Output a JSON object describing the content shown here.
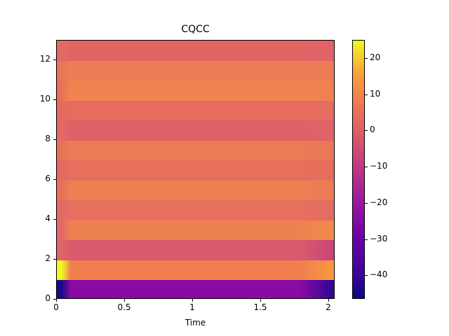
{
  "chart_data": {
    "type": "heatmap",
    "title": "CQCC",
    "xlabel": "Time",
    "ylabel": "",
    "xlim": [
      0,
      2.05
    ],
    "ylim": [
      0,
      13
    ],
    "xticks": [
      "0",
      "0.5",
      "1",
      "1.5",
      "2"
    ],
    "yticks": [
      "0",
      "2",
      "4",
      "6",
      "8",
      "10",
      "12"
    ],
    "colormap": "plasma",
    "colorbar": {
      "range": [
        -46.5,
        25
      ],
      "ticks": [
        "20",
        "10",
        "0",
        "−10",
        "−20",
        "−30",
        "−40"
      ]
    },
    "rows": [
      {
        "coef": 0,
        "start_color": "#1a0a8a",
        "color": "#8a0aa4",
        "end_color": "#2c0596",
        "approx_value": -35
      },
      {
        "coef": 1,
        "start_color": "#f0f921",
        "color": "#f07f4f",
        "end_color": "#fa9a3d",
        "approx_value": 5
      },
      {
        "coef": 2,
        "start_color": "#e0646a",
        "color": "#d85a6c",
        "end_color": "#c8447a",
        "approx_value": -5
      },
      {
        "coef": 3,
        "start_color": "#e4686a",
        "color": "#ee8150",
        "end_color": "#f08a4c",
        "approx_value": 5
      },
      {
        "coef": 4,
        "start_color": "#e46a63",
        "color": "#e76f5f",
        "end_color": "#e46a63",
        "approx_value": 0
      },
      {
        "coef": 5,
        "start_color": "#e87058",
        "color": "#ee7f52",
        "end_color": "#ec7a55",
        "approx_value": 3
      },
      {
        "coef": 6,
        "start_color": "#e4685e",
        "color": "#e86f5c",
        "end_color": "#e66c5d",
        "approx_value": 0
      },
      {
        "coef": 7,
        "start_color": "#e87258",
        "color": "#ec7a56",
        "end_color": "#ea7657",
        "approx_value": 2
      },
      {
        "coef": 8,
        "start_color": "#e4686a",
        "color": "#df6168",
        "end_color": "#e0636a",
        "approx_value": -3
      },
      {
        "coef": 9,
        "start_color": "#e46a63",
        "color": "#e66c5f",
        "end_color": "#e66c60",
        "approx_value": 0
      },
      {
        "coef": 10,
        "start_color": "#e87058",
        "color": "#f08450",
        "end_color": "#ef8151",
        "approx_value": 6
      },
      {
        "coef": 11,
        "start_color": "#ea7658",
        "color": "#ed7b55",
        "end_color": "#ed7b55",
        "approx_value": 3
      },
      {
        "coef": 12,
        "start_color": "#e46a66",
        "color": "#e26566",
        "end_color": "#e06268",
        "approx_value": -2
      }
    ]
  }
}
